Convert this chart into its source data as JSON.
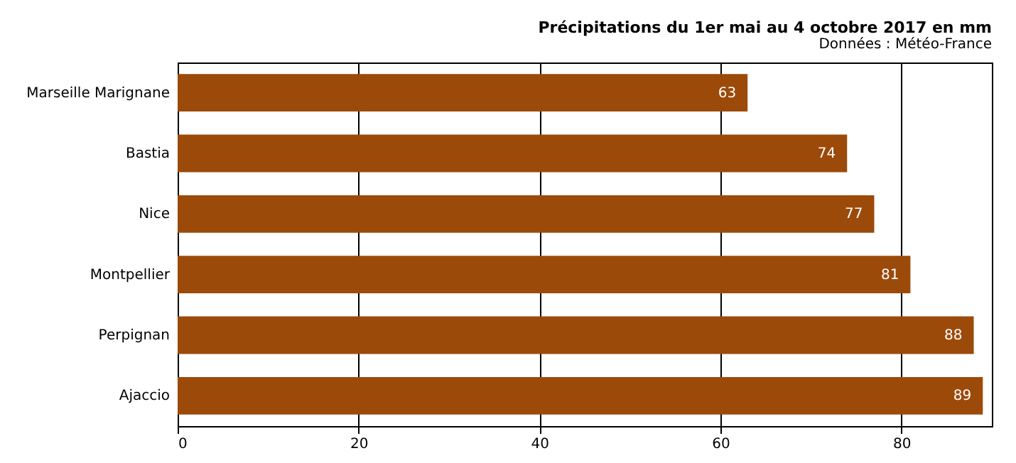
{
  "chart_data": {
    "type": "bar",
    "orientation": "horizontal",
    "title": "Précipitations du 1er mai au 4 octobre 2017 en mm",
    "subtitle": "Données : Météo-France",
    "categories": [
      "Marseille Marignane",
      "Bastia",
      "Nice",
      "Montpellier",
      "Perpignan",
      "Ajaccio"
    ],
    "values": [
      63,
      74,
      77,
      81,
      88,
      89
    ],
    "color": "#9c4a0a",
    "data_labels": true,
    "xlim": [
      0,
      90
    ],
    "xticks": [
      0,
      20,
      40,
      60,
      80
    ],
    "grid": "x"
  }
}
